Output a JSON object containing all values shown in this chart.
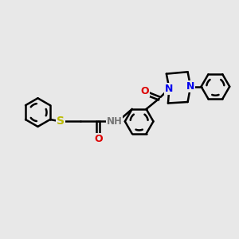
{
  "bg_color": "#e8e8e8",
  "bond_color": "#000000",
  "bond_width": 1.8,
  "N_color": "#0000ee",
  "O_color": "#dd0000",
  "S_color": "#bbbb00",
  "H_color": "#777777",
  "fontsize": 9.0,
  "figsize": [
    3.0,
    3.0
  ],
  "dpi": 100,
  "xlim": [
    0.0,
    10.0
  ],
  "ylim": [
    0.5,
    10.5
  ]
}
